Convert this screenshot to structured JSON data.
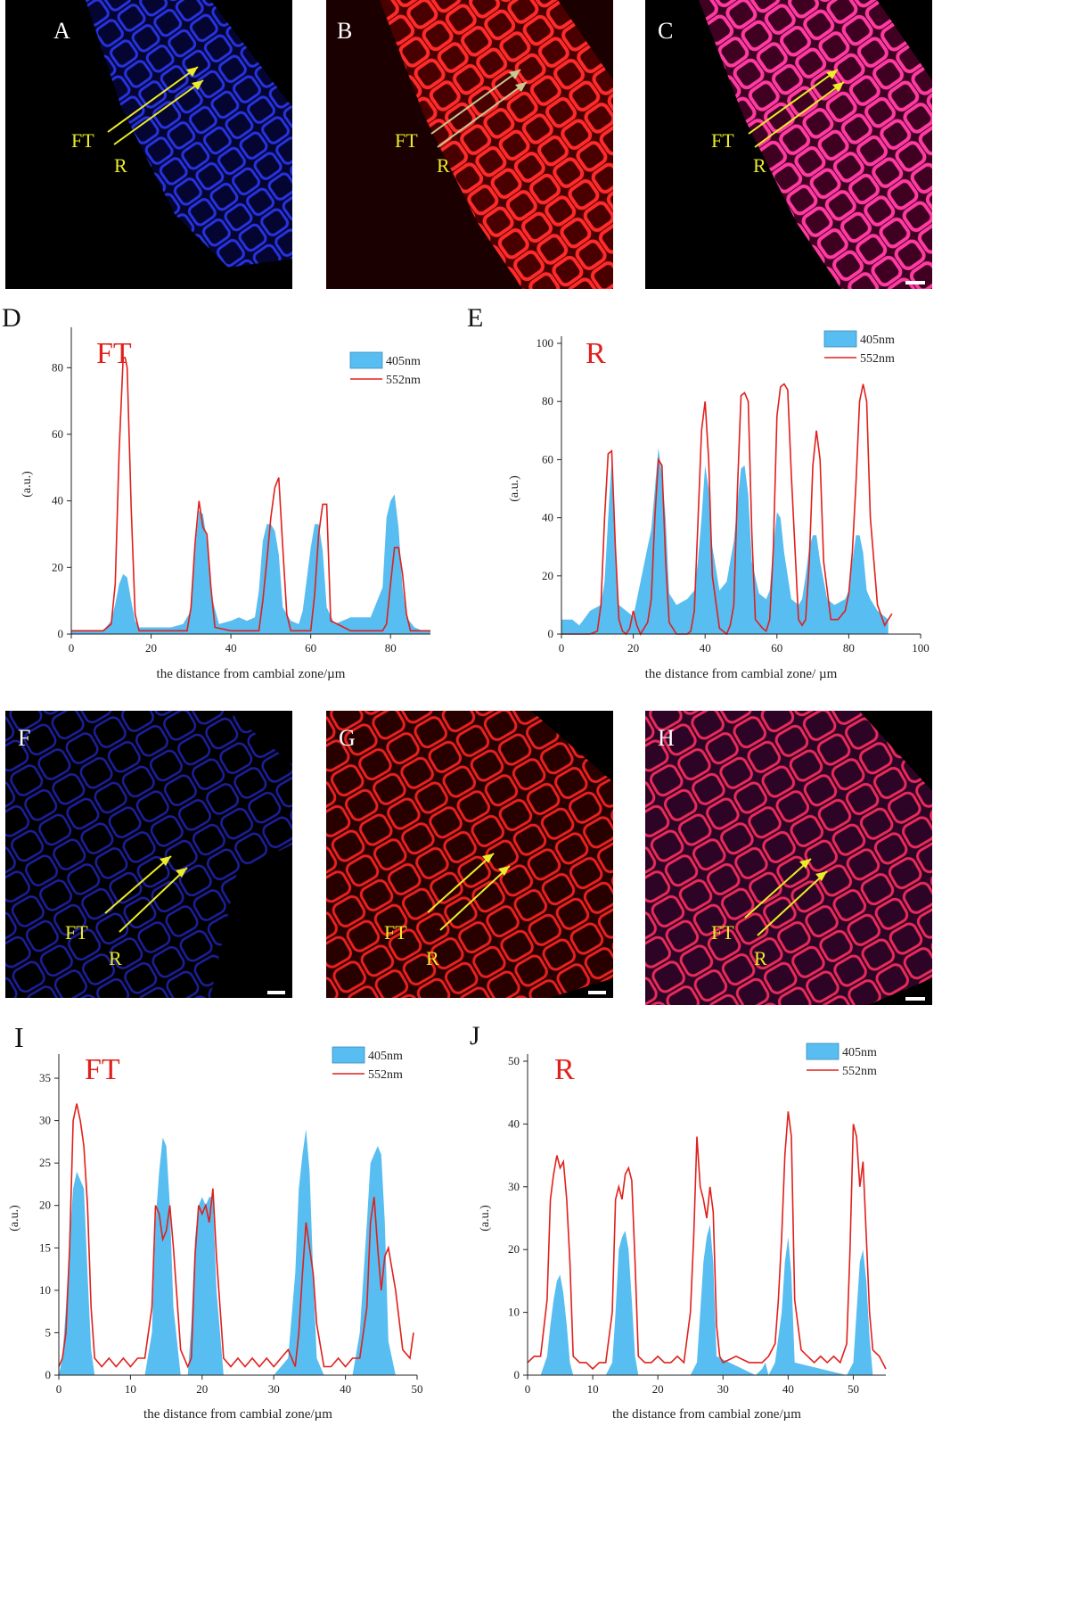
{
  "figure": {
    "micrograph_panels": [
      {
        "letter": "A",
        "channel": "405nm",
        "tint": "#1e2bd8",
        "arrow_labels": [
          "FT",
          "R"
        ]
      },
      {
        "letter": "B",
        "channel": "552nm",
        "tint": "#e81a1a",
        "arrow_labels": [
          "FT",
          "R"
        ]
      },
      {
        "letter": "C",
        "channel": "merge",
        "tint": "#e01a6a",
        "arrow_labels": [
          "FT",
          "R"
        ]
      },
      {
        "letter": "F",
        "channel": "405nm",
        "tint": "#1a1fa8",
        "arrow_labels": [
          "FT",
          "R"
        ]
      },
      {
        "letter": "G",
        "channel": "552nm",
        "tint": "#c21414",
        "arrow_labels": [
          "FT",
          "R"
        ]
      },
      {
        "letter": "H",
        "channel": "merge",
        "tint": "#c01a4a",
        "arrow_labels": [
          "FT",
          "R"
        ]
      }
    ],
    "colors": {
      "blue_fill": "#58bdf0",
      "red_line": "#e0201c",
      "label_yellow": "#ecec2a",
      "title_red": "#e0201c"
    }
  },
  "chart_data": [
    {
      "panel": "D",
      "type": "area",
      "title": "FT",
      "xlabel": "the distance from cambial zone/µm",
      "ylabel": "(a.u.)",
      "xlim": [
        0,
        90
      ],
      "ylim": [
        0,
        90
      ],
      "xticks": [
        0,
        20,
        40,
        60,
        80
      ],
      "yticks": [
        0,
        20,
        40,
        60,
        80
      ],
      "legend": {
        "placement": "top-right",
        "entries": [
          "405nm",
          "552nm"
        ]
      },
      "series": [
        {
          "name": "405nm",
          "style": "area",
          "x": [
            0,
            8,
            10,
            11,
            12,
            13,
            14,
            15,
            16,
            17,
            20,
            25,
            28,
            30,
            31,
            32,
            33,
            34,
            35,
            37,
            40,
            42,
            44,
            46,
            47,
            48,
            49,
            50,
            51,
            52,
            53,
            55,
            57,
            58,
            60,
            61,
            62,
            63,
            64,
            66,
            70,
            75,
            78,
            79,
            80,
            81,
            82,
            83,
            84,
            86,
            88,
            90
          ],
          "y": [
            1,
            1,
            4,
            9,
            15,
            18,
            17,
            10,
            4,
            2,
            2,
            2,
            3,
            7,
            25,
            37,
            36,
            28,
            12,
            3,
            4,
            5,
            4,
            5,
            13,
            28,
            33,
            33,
            31,
            24,
            8,
            4,
            3,
            7,
            26,
            33,
            33,
            25,
            8,
            3,
            5,
            5,
            14,
            35,
            40,
            42,
            32,
            14,
            5,
            2,
            1,
            1
          ]
        },
        {
          "name": "552nm",
          "style": "line",
          "x": [
            0,
            8,
            10,
            11,
            12,
            13,
            13.5,
            14,
            15,
            16,
            17,
            20,
            25,
            29,
            30,
            31,
            32,
            33,
            34,
            35,
            36,
            40,
            47,
            48,
            49,
            50,
            51,
            52,
            53,
            54,
            55,
            57,
            60,
            61,
            62,
            63,
            64,
            65,
            70,
            78,
            79,
            80,
            81,
            82,
            83,
            84,
            85,
            88,
            90
          ],
          "y": [
            1,
            1,
            3,
            15,
            55,
            83,
            83,
            80,
            38,
            6,
            1,
            1,
            1,
            1,
            8,
            27,
            40,
            32,
            30,
            14,
            2,
            1,
            1,
            10,
            22,
            35,
            44,
            47,
            26,
            6,
            1,
            1,
            1,
            12,
            30,
            39,
            39,
            4,
            1,
            1,
            3,
            15,
            26,
            26,
            18,
            6,
            1,
            1,
            1
          ]
        }
      ]
    },
    {
      "panel": "E",
      "type": "area",
      "title": "R",
      "xlabel": "the distance from cambial zone/ µm",
      "ylabel": "(a.u.)",
      "xlim": [
        0,
        100
      ],
      "ylim": [
        0,
        100
      ],
      "xticks": [
        0,
        20,
        40,
        60,
        80,
        100
      ],
      "yticks": [
        0,
        20,
        40,
        60,
        80,
        100
      ],
      "legend": {
        "placement": "top-right",
        "entries": [
          "405nm",
          "552nm"
        ]
      },
      "series": [
        {
          "name": "405nm",
          "style": "area",
          "x": [
            0,
            3,
            5,
            8,
            11,
            12,
            13,
            14,
            15,
            16,
            18,
            20,
            22,
            24,
            25,
            26,
            27,
            28,
            29,
            30,
            32,
            35,
            37,
            38,
            39,
            40,
            41,
            42,
            44,
            46,
            48,
            49,
            50,
            51,
            52,
            53,
            55,
            57,
            58,
            59,
            60,
            61,
            62,
            64,
            66,
            67,
            68,
            69,
            70,
            71,
            72,
            74,
            76,
            79,
            80,
            81,
            82,
            83,
            84,
            85,
            86,
            88,
            90,
            91
          ],
          "y": [
            5,
            5,
            3,
            8,
            10,
            18,
            40,
            60,
            30,
            10,
            8,
            6,
            18,
            30,
            36,
            50,
            64,
            55,
            40,
            14,
            10,
            12,
            15,
            25,
            40,
            58,
            50,
            30,
            15,
            18,
            32,
            45,
            57,
            58,
            48,
            25,
            14,
            12,
            15,
            30,
            42,
            40,
            28,
            12,
            10,
            12,
            20,
            30,
            34,
            34,
            25,
            12,
            10,
            12,
            15,
            25,
            34,
            34,
            28,
            15,
            12,
            8,
            6,
            5
          ]
        },
        {
          "name": "552nm",
          "style": "line",
          "x": [
            0,
            5,
            8,
            10,
            11,
            12,
            13,
            14,
            15,
            16,
            17,
            18,
            19,
            20,
            21,
            22,
            23,
            24,
            25,
            26,
            27,
            28,
            29,
            30,
            32,
            35,
            36,
            37,
            38,
            39,
            40,
            41,
            42,
            44,
            46,
            47,
            48,
            49,
            50,
            51,
            52,
            53,
            54,
            56,
            57,
            58,
            59,
            60,
            61,
            62,
            63,
            64,
            66,
            67,
            68,
            69,
            70,
            71,
            72,
            73,
            75,
            77,
            79,
            80,
            81,
            82,
            83,
            84,
            85,
            86,
            88,
            90,
            92
          ],
          "y": [
            0,
            0,
            0,
            1,
            10,
            40,
            62,
            63,
            30,
            5,
            1,
            0,
            2,
            8,
            3,
            0,
            2,
            4,
            12,
            40,
            60,
            58,
            25,
            4,
            0,
            0,
            1,
            8,
            38,
            70,
            80,
            60,
            20,
            2,
            0,
            3,
            10,
            50,
            82,
            83,
            80,
            35,
            5,
            2,
            1,
            5,
            30,
            75,
            85,
            86,
            84,
            55,
            5,
            3,
            5,
            25,
            58,
            70,
            60,
            25,
            5,
            5,
            8,
            14,
            28,
            52,
            80,
            86,
            80,
            40,
            10,
            3,
            7
          ]
        }
      ]
    },
    {
      "panel": "I",
      "type": "area",
      "title": "FT",
      "xlabel": "the distance from cambial zone/µm",
      "ylabel": "(a.u.)",
      "xlim": [
        0,
        50
      ],
      "ylim": [
        0,
        37
      ],
      "xticks": [
        0,
        10,
        20,
        30,
        40,
        50
      ],
      "yticks": [
        0,
        5,
        10,
        15,
        20,
        25,
        30,
        35
      ],
      "legend": {
        "placement": "top-right",
        "entries": [
          "405nm",
          "552nm"
        ]
      },
      "series": [
        {
          "name": "405nm",
          "style": "area",
          "x": [
            0,
            0.5,
            1,
            1.5,
            2,
            2.5,
            3,
            3.5,
            4,
            4.5,
            5,
            8,
            12,
            13,
            13.5,
            14,
            14.5,
            15,
            15.5,
            16,
            17,
            18,
            18.5,
            19,
            19.5,
            20,
            20.5,
            21,
            21.5,
            22,
            23,
            30,
            32,
            33,
            33.5,
            34,
            34.5,
            35,
            35.5,
            36,
            37,
            41,
            42,
            43,
            43.5,
            44,
            44.5,
            45,
            45.5,
            46,
            47,
            50
          ],
          "y": [
            0,
            2,
            8,
            16,
            22,
            24,
            23,
            22,
            12,
            3,
            0,
            0,
            0,
            5,
            18,
            24,
            28,
            27,
            20,
            8,
            0,
            0,
            6,
            16,
            20,
            21,
            20,
            21,
            21,
            10,
            0,
            0,
            2,
            12,
            22,
            26,
            29,
            24,
            12,
            2,
            0,
            0,
            5,
            18,
            25,
            26,
            27,
            26,
            18,
            4,
            0,
            0
          ]
        },
        {
          "name": "552nm",
          "style": "line",
          "x": [
            0,
            0.5,
            1,
            1.5,
            2,
            2.5,
            3,
            3.5,
            4,
            4.5,
            5,
            6,
            7,
            8,
            9,
            10,
            11,
            12,
            13,
            13.5,
            14,
            14.5,
            15,
            15.5,
            16,
            17,
            18,
            18.5,
            19,
            19.5,
            20,
            20.5,
            21,
            21.5,
            22,
            23,
            24,
            25,
            26,
            27,
            28,
            29,
            30,
            31,
            32,
            33,
            33.5,
            34,
            34.5,
            35,
            35.5,
            36,
            37,
            38,
            39,
            40,
            41,
            42,
            43,
            43.5,
            44,
            44.5,
            45,
            45.5,
            46,
            47,
            48,
            49,
            49.5
          ],
          "y": [
            1,
            2,
            5,
            15,
            30,
            32,
            30,
            27,
            20,
            8,
            2,
            1,
            2,
            1,
            2,
            1,
            2,
            2,
            8,
            20,
            19,
            16,
            17,
            20,
            15,
            3,
            1,
            2,
            14,
            20,
            19,
            20,
            18,
            22,
            14,
            2,
            1,
            2,
            1,
            2,
            1,
            2,
            1,
            2,
            3,
            1,
            5,
            12,
            18,
            15,
            12,
            6,
            1,
            1,
            2,
            1,
            2,
            2,
            8,
            18,
            21,
            15,
            10,
            14,
            15,
            10,
            3,
            2,
            5
          ]
        }
      ]
    },
    {
      "panel": "J",
      "type": "area",
      "title": "R",
      "xlabel": "the distance from cambial zone/µm",
      "ylabel": "(a.u.)",
      "xlim": [
        0,
        55
      ],
      "ylim": [
        0,
        50
      ],
      "xticks": [
        0,
        10,
        20,
        30,
        40,
        50
      ],
      "yticks": [
        0,
        10,
        20,
        30,
        40,
        50
      ],
      "legend": {
        "placement": "top-right",
        "entries": [
          "405nm",
          "552nm"
        ]
      },
      "series": [
        {
          "name": "405nm",
          "style": "area",
          "x": [
            0,
            2,
            3,
            3.5,
            4,
            4.5,
            5,
            5.5,
            6,
            6.5,
            7,
            12,
            13,
            13.5,
            14,
            14.5,
            15,
            15.5,
            16,
            16.5,
            17,
            25,
            26,
            26.5,
            27,
            27.5,
            28,
            28.5,
            29,
            35,
            36,
            36.5,
            37,
            38,
            39,
            39.5,
            40,
            40.5,
            41,
            49,
            50,
            50.5,
            51,
            51.5,
            52,
            52.5,
            53,
            55
          ],
          "y": [
            0,
            0,
            3,
            8,
            12,
            15,
            16,
            13,
            8,
            2,
            0,
            0,
            2,
            10,
            20,
            22,
            23,
            20,
            12,
            3,
            0,
            0,
            2,
            10,
            18,
            22,
            24,
            18,
            3,
            0,
            1,
            2,
            0,
            2,
            10,
            18,
            22,
            16,
            2,
            0,
            2,
            10,
            18,
            20,
            15,
            6,
            0,
            0
          ]
        },
        {
          "name": "552nm",
          "style": "line",
          "x": [
            0,
            1,
            2,
            3,
            3.5,
            4,
            4.5,
            5,
            5.5,
            6,
            6.5,
            7,
            8,
            9,
            10,
            11,
            12,
            13,
            13.5,
            14,
            14.5,
            15,
            15.5,
            16,
            16.5,
            17,
            18,
            19,
            20,
            21,
            22,
            23,
            24,
            25,
            25.5,
            26,
            26.5,
            27,
            27.5,
            28,
            28.5,
            29,
            29.5,
            30,
            32,
            34,
            36,
            37,
            38,
            38.5,
            39,
            39.5,
            40,
            40.5,
            41,
            42,
            43,
            44,
            45,
            46,
            47,
            48,
            49,
            49.5,
            50,
            50.5,
            51,
            51.5,
            52,
            52.5,
            53,
            54,
            55
          ],
          "y": [
            2,
            3,
            3,
            12,
            28,
            32,
            35,
            33,
            34,
            28,
            18,
            3,
            2,
            2,
            1,
            2,
            2,
            10,
            28,
            30,
            28,
            32,
            33,
            31,
            18,
            3,
            2,
            2,
            3,
            2,
            2,
            3,
            2,
            10,
            22,
            38,
            30,
            28,
            25,
            30,
            26,
            8,
            3,
            2,
            3,
            2,
            2,
            3,
            5,
            12,
            22,
            35,
            42,
            38,
            12,
            4,
            3,
            2,
            3,
            2,
            3,
            2,
            5,
            20,
            40,
            38,
            30,
            34,
            22,
            10,
            4,
            3,
            1
          ]
        }
      ]
    }
  ]
}
